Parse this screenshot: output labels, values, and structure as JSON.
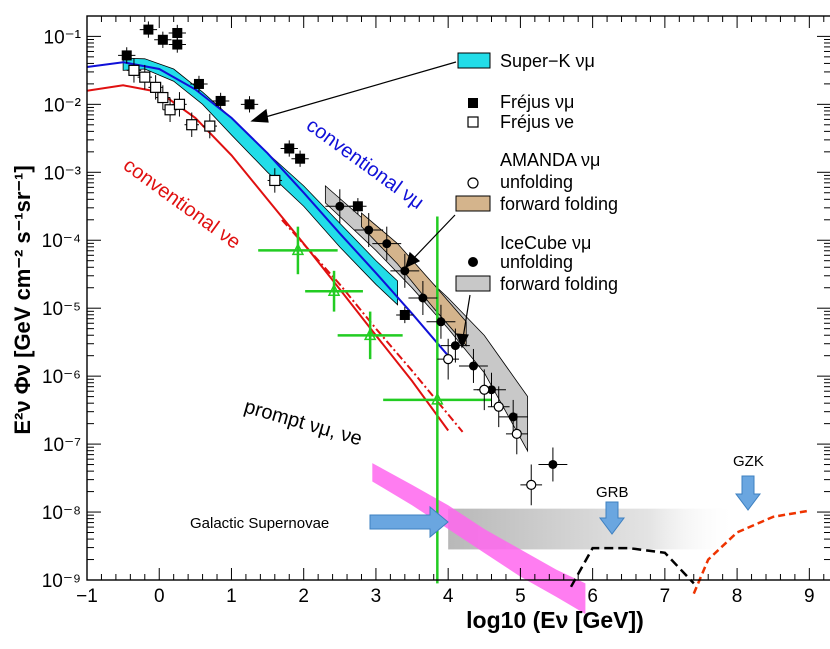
{
  "chart_data": {
    "type": "scatter",
    "xlabel": "log10 (Eν [GeV])",
    "ylabel": "E²ν Φν [GeV cm⁻² s⁻¹sr⁻¹]",
    "xlim": [
      -1,
      9.3
    ],
    "ylim_log10": [
      -9,
      -0.7
    ],
    "x_ticks": [
      -1,
      0,
      1,
      2,
      3,
      4,
      5,
      6,
      7,
      8,
      9
    ],
    "x_tick_labels": [
      "−1",
      "0",
      "1",
      "2",
      "3",
      "4",
      "5",
      "6",
      "7",
      "8",
      "9"
    ],
    "y_ticks_log10": [
      -9,
      -8,
      -7,
      -6,
      -5,
      -4,
      -3,
      -2,
      -1
    ],
    "y_tick_labels": [
      "10⁻⁹",
      "10⁻⁸",
      "10⁻⁷",
      "10⁻⁶",
      "10⁻⁵",
      "10⁻⁴",
      "10⁻³",
      "10⁻²",
      "10⁻¹"
    ],
    "legend": {
      "superk": "Super−K νμ",
      "frejus_mu": "Fréjus νμ",
      "frejus_e": "Fréjus νe",
      "amanda": "AMANDA νμ",
      "amanda_unf": "unfolding",
      "amanda_ff": "forward folding",
      "icecube": "IceCube νμ",
      "icecube_unf": "unfolding",
      "icecube_ff": "forward folding"
    },
    "labels": {
      "conv_mu": "conventional νμ",
      "conv_e": "conventional νe",
      "prompt": "prompt νμ, νe",
      "galactic": "Galactic Supernovae",
      "grb": "GRB",
      "gzk": "GZK"
    },
    "colors": {
      "conv_mu": "#1010d8",
      "conv_e": "#e01010",
      "superk": "#22dde8",
      "amanda_band": "#d4b48c",
      "icecube_band": "#c8c8c8",
      "prompt": "#ff66ee",
      "green": "#22cc22",
      "arrow_blue": "#6aa6e0",
      "gzk_line": "#ee3300"
    },
    "series": [
      {
        "name": "conventional νμ",
        "x": [
          -1,
          -0.5,
          0,
          0.5,
          1,
          1.5,
          2,
          2.5,
          3,
          3.5,
          4
        ],
        "log10_y": [
          -1.45,
          -1.38,
          -1.48,
          -1.78,
          -2.2,
          -2.72,
          -3.3,
          -3.9,
          -4.48,
          -5.08,
          -5.7
        ]
      },
      {
        "name": "conventional νe",
        "x": [
          -1,
          -0.5,
          0,
          0.5,
          1,
          1.5,
          2,
          2.5,
          3,
          3.5,
          4
        ],
        "log10_y": [
          -1.8,
          -1.72,
          -1.82,
          -2.2,
          -2.75,
          -3.4,
          -4.05,
          -4.72,
          -5.4,
          -6.07,
          -6.8
        ]
      },
      {
        "name": "prompt νe (dash-dot)",
        "x": [
          1.7,
          2.5,
          3,
          3.5,
          4.2
        ],
        "log10_y": [
          -3.7,
          -4.65,
          -5.3,
          -5.92,
          -6.82
        ]
      },
      {
        "name": "GZK",
        "x": [
          7.4,
          7.6,
          8,
          8.5,
          9
        ],
        "log10_y": [
          -9.2,
          -8.7,
          -8.3,
          -8.07,
          -7.98
        ]
      },
      {
        "name": "GRB",
        "x": [
          5.7,
          6,
          6.5,
          7,
          7.4
        ],
        "log10_y": [
          -9.1,
          -8.53,
          -8.53,
          -8.6,
          -9.05
        ]
      }
    ],
    "points": {
      "frejus_mu": [
        {
          "x": -0.45,
          "ly": -1.28
        },
        {
          "x": -0.15,
          "ly": -0.9
        },
        {
          "x": 0.05,
          "ly": -1.05
        },
        {
          "x": 0.25,
          "ly": -1.12
        },
        {
          "x": 0.25,
          "ly": -0.95
        },
        {
          "x": 0.55,
          "ly": -1.7
        },
        {
          "x": 0.85,
          "ly": -1.95
        },
        {
          "x": 1.25,
          "ly": -2.0
        },
        {
          "x": 1.8,
          "ly": -2.65
        },
        {
          "x": 1.95,
          "ly": -2.8
        },
        {
          "x": 2.75,
          "ly": -3.5
        },
        {
          "x": 3.4,
          "ly": -5.1
        }
      ],
      "frejus_e": [
        {
          "x": -0.35,
          "ly": -1.5
        },
        {
          "x": -0.2,
          "ly": -1.6
        },
        {
          "x": -0.05,
          "ly": -1.75
        },
        {
          "x": 0.05,
          "ly": -1.9
        },
        {
          "x": 0.15,
          "ly": -2.08
        },
        {
          "x": 0.28,
          "ly": -2.0
        },
        {
          "x": 0.45,
          "ly": -2.3
        },
        {
          "x": 0.7,
          "ly": -2.32
        },
        {
          "x": 1.6,
          "ly": -3.12
        }
      ],
      "icecube": [
        {
          "x": 2.5,
          "ly": -3.5
        },
        {
          "x": 2.9,
          "ly": -3.85
        },
        {
          "x": 3.15,
          "ly": -4.05
        },
        {
          "x": 3.4,
          "ly": -4.45
        },
        {
          "x": 3.65,
          "ly": -4.85
        },
        {
          "x": 3.9,
          "ly": -5.2
        },
        {
          "x": 4.1,
          "ly": -5.55
        },
        {
          "x": 4.35,
          "ly": -5.85
        },
        {
          "x": 4.6,
          "ly": -6.2
        },
        {
          "x": 4.9,
          "ly": -6.6
        },
        {
          "x": 5.45,
          "ly": -7.3
        }
      ],
      "amanda": [
        {
          "x": 4.0,
          "ly": -5.75
        },
        {
          "x": 4.5,
          "ly": -6.2
        },
        {
          "x": 4.7,
          "ly": -6.45
        },
        {
          "x": 4.95,
          "ly": -6.85
        },
        {
          "x": 5.15,
          "ly": -7.6
        }
      ],
      "green": [
        {
          "x": 1.92,
          "ly": -4.15,
          "xerr": 0.55,
          "yerr": 0.35
        },
        {
          "x": 2.42,
          "ly": -4.75,
          "xerr": 0.4,
          "yerr": 0.3
        },
        {
          "x": 2.92,
          "ly": -5.4,
          "xerr": 0.45,
          "yerr": 0.35
        },
        {
          "x": 3.85,
          "ly": -6.35,
          "xerr": 0.75,
          "yerr": 2.7
        }
      ]
    }
  }
}
